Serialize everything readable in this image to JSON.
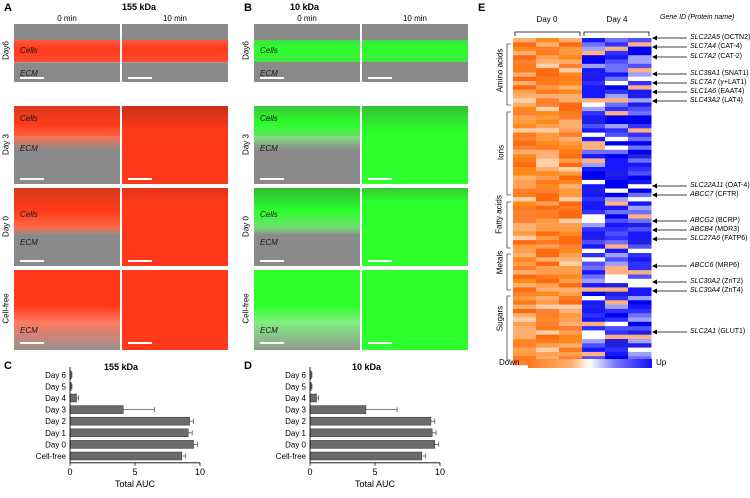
{
  "panels": {
    "A": {
      "letter": "A",
      "title": "155 kDa",
      "col0": "0 min",
      "col1": "10 min",
      "rows": [
        "Day6",
        "Day 3",
        "Day 0",
        "Cell-free"
      ],
      "cells": "Cells",
      "ecm": "ECM"
    },
    "B": {
      "letter": "B",
      "title": "10 kDa",
      "col0": "0 min",
      "col1": "10 min",
      "rows": [
        "Day6",
        "Day 3",
        "Day 0",
        "Cell-free"
      ],
      "cells": "Cells",
      "ecm": "ECM"
    },
    "C": {
      "letter": "C",
      "title": "155 kDa"
    },
    "D": {
      "letter": "D",
      "title": "10 kDa"
    },
    "E": {
      "letter": "E",
      "day0": "Day 0",
      "day4": "Day 4",
      "gene_header": "Gene ID (Protein name)",
      "categories": [
        "Amino acids",
        "Ions",
        "Fatty acids",
        "Metals",
        "Sugars"
      ],
      "legend_down": "Down",
      "legend_up": "Up",
      "genes": [
        {
          "id": "SLC22A5",
          "prot": "(OCTN2)"
        },
        {
          "id": "SLC7A4",
          "prot": "(CAT-4)"
        },
        {
          "id": "SLC7A2",
          "prot": "(CAT-2)"
        },
        {
          "id": "SLC38A1",
          "prot": "(SNAT1)"
        },
        {
          "id": "SLC7A7",
          "prot": "(y+LAT1)"
        },
        {
          "id": "SLC1A6",
          "prot": "(EAAT4)"
        },
        {
          "id": "SLC43A2",
          "prot": "(LAT4)"
        },
        {
          "id": "SLC22A11",
          "prot": "(OAT-4)"
        },
        {
          "id": "ABCC7",
          "prot": "(CFTR)"
        },
        {
          "id": "ABCG2",
          "prot": "(BCRP)"
        },
        {
          "id": "ABCB4",
          "prot": "(MDR3)"
        },
        {
          "id": "SLC27A6",
          "prot": "(FATP6)"
        },
        {
          "id": "ABCC6",
          "prot": "(MRP6)"
        },
        {
          "id": "SLC30A2",
          "prot": "(ZnT2)"
        },
        {
          "id": "SLC30A4",
          "prot": "(ZnT4)"
        },
        {
          "id": "SLC2A1",
          "prot": "(GLUT1)"
        }
      ]
    }
  },
  "chart_data": [
    {
      "type": "bar",
      "orientation": "horizontal",
      "title": "155 kDa",
      "xlabel": "Total  AUC",
      "ylabel": "",
      "categories": [
        "Day 6",
        "Day 5",
        "Day 4",
        "Day 3",
        "Day 2",
        "Day 1",
        "Day 0",
        "Cell-free"
      ],
      "values": [
        0.1,
        0.1,
        0.5,
        4.1,
        9.2,
        9.1,
        9.5,
        8.6
      ],
      "errors": [
        0.05,
        0.05,
        0.15,
        2.4,
        0.3,
        0.3,
        0.3,
        0.3
      ],
      "xlim": [
        0,
        10
      ],
      "xticks": [
        "0",
        "5",
        "10"
      ],
      "color": "#6b6b6b"
    },
    {
      "type": "bar",
      "orientation": "horizontal",
      "title": "10 kDa",
      "xlabel": "Total  AUC",
      "ylabel": "",
      "categories": [
        "Day 6",
        "Day 5",
        "Day 4",
        "Day 3",
        "Day 2",
        "Day 1",
        "Day 0",
        "Cell-free"
      ],
      "values": [
        0.1,
        0.1,
        0.5,
        4.3,
        9.3,
        9.4,
        9.6,
        8.6
      ],
      "errors": [
        0.05,
        0.05,
        0.15,
        2.4,
        0.3,
        0.3,
        0.3,
        0.3
      ],
      "xlim": [
        0,
        10
      ],
      "xticks": [
        "0",
        "5",
        "10"
      ],
      "color": "#6b6b6b"
    }
  ]
}
